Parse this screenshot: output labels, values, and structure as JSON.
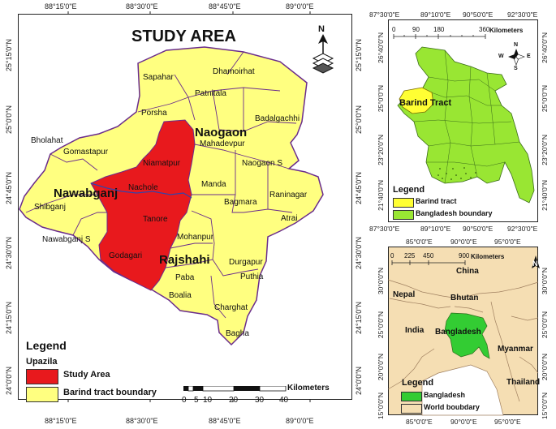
{
  "main_map": {
    "title": "STUDY AREA",
    "top_coords": [
      "88°15'0\"E",
      "88°30'0\"E",
      "88°45'0\"E",
      "89°0'0\"E"
    ],
    "bottom_coords": [
      "88°15'0\"E",
      "88°30'0\"E",
      "88°45'0\"E",
      "89°0'0\"E"
    ],
    "side_coords": [
      "25°15'0\"N",
      "25°0'0\"N",
      "24°45'0\"N",
      "24°30'0\"N",
      "24°15'0\"N",
      "24°0'0\"N"
    ],
    "district_labels": [
      "Naogaon",
      "Nawabganj",
      "Rajshahi"
    ],
    "upazila_labels": [
      "Sapahar",
      "Dhamoirhat",
      "Patnitala",
      "Porsha",
      "Badalgachhi",
      "Mahadevpur",
      "Bholahat",
      "Gomastapur",
      "Niamatpur",
      "Naogaon S",
      "Nachole",
      "Manda",
      "Raninagar",
      "Shibganj",
      "Tanore",
      "Bagmara",
      "Atrai",
      "Nawabganj S",
      "Mohanpur",
      "Godagari",
      "Durgapur",
      "Paba",
      "Puthia",
      "Boalia",
      "Charghat",
      "Bagha"
    ],
    "legend": {
      "title": "Legend",
      "subtitle": "Upazila",
      "items": [
        {
          "label": "Study Area",
          "color": "#e8191d"
        },
        {
          "label": "Barind tract boundary",
          "color": "#ffff80"
        }
      ]
    },
    "scale": {
      "ticks": [
        "0",
        "5",
        "10",
        "20",
        "30",
        "40"
      ],
      "unit": "Kilometers"
    },
    "north": "N",
    "colors": {
      "barind": "#ffff80",
      "study": "#e8191d",
      "boundary": "#6a2c8c",
      "river": "#3344aa"
    }
  },
  "bd_map": {
    "top_coords": [
      "87°30'0\"E",
      "89°10'0\"E",
      "90°50'0\"E",
      "92°30'0\"E"
    ],
    "bottom_coords": [
      "87°30'0\"E",
      "89°10'0\"E",
      "90°50'0\"E",
      "92°30'0\"E"
    ],
    "left_coords": [
      "26°40'0\"N",
      "25°0'0\"N",
      "23°20'0\"N",
      "21°40'0\"N"
    ],
    "right_coords": [
      "26°40'0\"N",
      "25°0'0\"N",
      "23°20'0\"N",
      "21°40'0\"N"
    ],
    "scale": {
      "ticks": [
        "0",
        "90",
        "180",
        "360"
      ],
      "unit": "Kilometers"
    },
    "label": "Barind Tract",
    "compass": [
      "N",
      "S",
      "E",
      "W"
    ],
    "legend": {
      "title": "Legend",
      "items": [
        {
          "label": "Barind tract",
          "color": "#ffff33"
        },
        {
          "label": "Bangladesh boundary",
          "color": "#99e633"
        }
      ]
    }
  },
  "region_map": {
    "top_coords": [
      "85°0'0\"E",
      "90°0'0\"E",
      "95°0'0\"E"
    ],
    "bottom_coords": [
      "85°0'0\"E",
      "90°0'0\"E",
      "95°0'0\"E"
    ],
    "left_coords": [
      "30°0'0\"N",
      "25°0'0\"N",
      "20°0'0\"N",
      "15°0'0\"N"
    ],
    "right_coords": [
      "30°0'0\"N",
      "25°0'0\"N",
      "20°0'0\"N",
      "15°0'0\"N"
    ],
    "scale": {
      "ticks": [
        "0",
        "225",
        "450",
        "900"
      ],
      "unit": "Kilometers"
    },
    "countries": [
      "China",
      "Nepal",
      "Bhutan",
      "India",
      "Bangladesh",
      "Myanmar",
      "Thailand"
    ],
    "north": "N",
    "legend": {
      "title": "Legend",
      "items": [
        {
          "label": "Bangladesh",
          "color": "#33cc33"
        },
        {
          "label": "World boubdary",
          "color": "#f5deb3"
        }
      ]
    }
  }
}
